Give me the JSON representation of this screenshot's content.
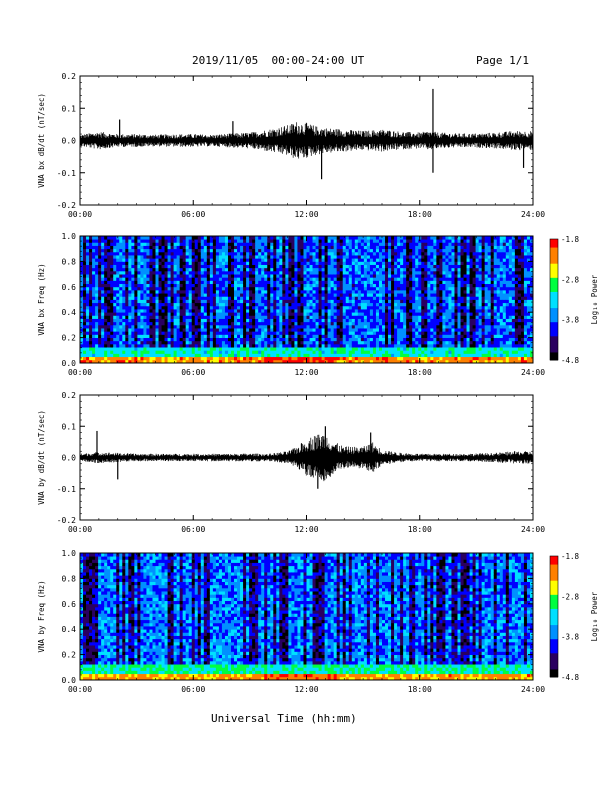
{
  "header": {
    "title": "2019/11/05  00:00-24:00 UT",
    "page": "Page 1/1"
  },
  "xlabel": "Universal Time (hh:mm)",
  "colors": {
    "axis": "#000000",
    "spectrogram_colormap": [
      "#000000",
      "#2a0060",
      "#0000ff",
      "#0090ff",
      "#00e0ff",
      "#00ff40",
      "#ffff00",
      "#ff8000",
      "#ff0000"
    ]
  },
  "chart_data": [
    {
      "type": "line",
      "title": "",
      "ylabel": "VNA bx dB/dt (nT/sec)",
      "xlabel": "",
      "xticks": [
        "00:00",
        "06:00",
        "12:00",
        "18:00",
        "24:00"
      ],
      "xlim": [
        0,
        24
      ],
      "ylim": [
        -0.2,
        0.2
      ],
      "yticks": [
        "-0.2",
        "-0.1",
        "0.0",
        "0.1",
        "0.2"
      ],
      "envelope": {
        "x_hours": [
          0,
          1,
          2,
          3,
          4,
          5,
          6,
          7,
          8,
          9,
          10,
          11,
          11.5,
          12,
          12.5,
          13,
          14,
          15,
          16,
          17,
          18,
          18.5,
          19,
          20,
          21,
          22,
          23,
          24
        ],
        "half_amplitude": [
          0.018,
          0.028,
          0.02,
          0.02,
          0.018,
          0.02,
          0.02,
          0.018,
          0.022,
          0.025,
          0.035,
          0.048,
          0.06,
          0.055,
          0.045,
          0.04,
          0.035,
          0.03,
          0.035,
          0.028,
          0.025,
          0.03,
          0.025,
          0.022,
          0.022,
          0.025,
          0.03,
          0.03
        ]
      },
      "spikes": [
        {
          "x_hours": 2.1,
          "y": 0.065
        },
        {
          "x_hours": 12.8,
          "y": -0.12
        },
        {
          "x_hours": 18.7,
          "y": 0.16
        },
        {
          "x_hours": 18.7,
          "y": -0.1
        },
        {
          "x_hours": 23.5,
          "y": -0.085
        },
        {
          "x_hours": 8.1,
          "y": 0.06
        }
      ]
    },
    {
      "type": "heatmap",
      "title": "",
      "ylabel": "VNA bx Freq (Hz)",
      "xticks": [
        "00:00",
        "06:00",
        "12:00",
        "18:00",
        "24:00"
      ],
      "xlim": [
        0,
        24
      ],
      "ylim": [
        0.0,
        1.0
      ],
      "yticks": [
        "0.0",
        "0.2",
        "0.4",
        "0.6",
        "0.8",
        "1.0"
      ],
      "colorbar": {
        "label": "Log₁₀ Power",
        "range": [
          -4.8,
          -1.8
        ],
        "ticks": [
          "-1.8",
          "-2.8",
          "-3.8",
          "-4.8"
        ]
      },
      "description_values": {
        "low_freq_band_hz": 0.05,
        "low_freq_log_power": -2.3,
        "background_log_power": -3.8
      }
    },
    {
      "type": "line",
      "title": "",
      "ylabel": "VNA by dB/dt (nT/sec)",
      "xlabel": "",
      "xticks": [
        "00:00",
        "06:00",
        "12:00",
        "18:00",
        "24:00"
      ],
      "xlim": [
        0,
        24
      ],
      "ylim": [
        -0.2,
        0.2
      ],
      "yticks": [
        "-0.2",
        "-0.1",
        "0.0",
        "0.1",
        "0.2"
      ],
      "envelope": {
        "x_hours": [
          0,
          1,
          2,
          3,
          4,
          5,
          6,
          7,
          8,
          9,
          10,
          11,
          11.5,
          12,
          12.5,
          13,
          13.5,
          14,
          15,
          15.5,
          16,
          17,
          18,
          19,
          20,
          21,
          22,
          23,
          24
        ],
        "half_amplitude": [
          0.012,
          0.018,
          0.015,
          0.012,
          0.012,
          0.012,
          0.012,
          0.012,
          0.012,
          0.013,
          0.012,
          0.02,
          0.035,
          0.06,
          0.075,
          0.08,
          0.05,
          0.035,
          0.035,
          0.05,
          0.025,
          0.015,
          0.012,
          0.012,
          0.012,
          0.013,
          0.015,
          0.02,
          0.02
        ]
      },
      "spikes": [
        {
          "x_hours": 0.9,
          "y": 0.085
        },
        {
          "x_hours": 2.0,
          "y": -0.07
        },
        {
          "x_hours": 12.6,
          "y": -0.1
        },
        {
          "x_hours": 13.0,
          "y": 0.1
        },
        {
          "x_hours": 15.4,
          "y": 0.08
        }
      ]
    },
    {
      "type": "heatmap",
      "title": "",
      "ylabel": "VNA by Freq (Hz)",
      "xticks": [
        "00:00",
        "06:00",
        "12:00",
        "18:00",
        "24:00"
      ],
      "xlim": [
        0,
        24
      ],
      "ylim": [
        0.0,
        1.0
      ],
      "yticks": [
        "0.0",
        "0.2",
        "0.4",
        "0.6",
        "0.8",
        "1.0"
      ],
      "colorbar": {
        "label": "Log₁₀ Power",
        "range": [
          -4.8,
          -1.8
        ],
        "ticks": [
          "-1.8",
          "-2.8",
          "-3.8",
          "-4.8"
        ]
      },
      "description_values": {
        "low_freq_band_hz": 0.05,
        "low_freq_log_power": -2.4,
        "background_log_power": -3.7
      }
    }
  ]
}
